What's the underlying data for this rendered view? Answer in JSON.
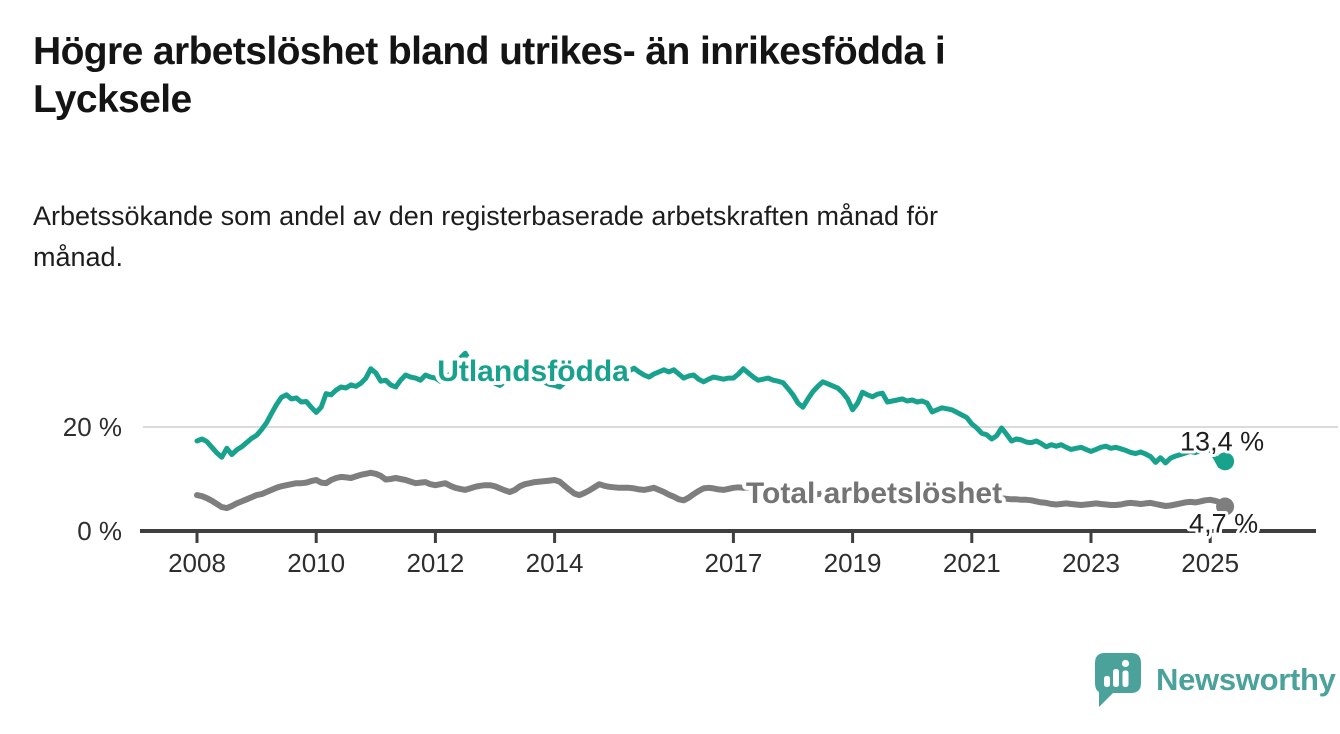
{
  "header": {
    "title_lines": [
      "Högre arbetslöshet bland utrikes- än inrikesfödda i",
      "Lycksele"
    ],
    "subtitle_lines": [
      "Arbetssökande som andel av den registerbaserade arbetskraften månad för",
      "månad."
    ]
  },
  "branding": {
    "logo_text": "Newsworthy",
    "logo_color": "#4BA29B",
    "logo_icon": "speech-bubble-bar-chart-icon"
  },
  "chart_data": {
    "type": "line",
    "unit": "%",
    "x_start": "2008-01",
    "x_end": "2025-04",
    "points_per_year": 12,
    "x_tick_labels": [
      "2008",
      "2010",
      "2012",
      "2014",
      "2017",
      "2019",
      "2021",
      "2023",
      "2025"
    ],
    "x_tick_years": [
      2008,
      2010,
      2012,
      2014,
      2017,
      2019,
      2021,
      2023,
      2025
    ],
    "y_ticks": [
      {
        "label": "20 %",
        "value": 20
      },
      {
        "label": "0 %",
        "value": 0
      }
    ],
    "ylim_visible": [
      0,
      36
    ],
    "grid": "single light horizontal gridline at 20 %, dark baseline at 0 %",
    "legend_position": "inline labels on lines",
    "colors": {
      "utlandsfodda": "#18A28D",
      "total": "#7E7E7E",
      "axis": "#3F3F3F",
      "gridline": "#DBDBDB",
      "end_label_text": "#1F1F1F",
      "tick_text": "#2E2E2E"
    },
    "series": [
      {
        "name": "Utlandsfödda",
        "color": "#18A28D",
        "label_color": "#18A28D",
        "end_label": "13,4 %",
        "end_value": 13.4,
        "label_anchor": {
          "year": 2012.03,
          "pct": 28.85
        },
        "values": [
          17.3,
          17.7,
          17.2,
          16.1,
          15.0,
          14.2,
          15.9,
          14.7,
          15.6,
          16.2,
          17.0,
          17.8,
          18.4,
          19.5,
          20.8,
          22.6,
          24.3,
          25.7,
          26.2,
          25.4,
          25.6,
          24.8,
          24.9,
          23.8,
          22.8,
          23.8,
          26.4,
          26.2,
          27.1,
          27.7,
          27.5,
          28.1,
          27.8,
          28.4,
          29.4,
          31.2,
          30.4,
          28.8,
          29.0,
          28.1,
          27.7,
          29.0,
          30.0,
          29.6,
          29.4,
          29.0,
          30.0,
          29.6,
          29.4,
          28.8,
          29.5,
          30.2,
          31.5,
          33.2,
          34.2,
          32.5,
          31.0,
          30.2,
          29.6,
          29.0,
          28.4,
          28.0,
          28.8,
          29.6,
          30.2,
          29.8,
          30.4,
          30.0,
          29.5,
          29.0,
          28.6,
          28.2,
          28.0,
          27.7,
          28.5,
          29.2,
          29.8,
          30.2,
          29.8,
          29.4,
          29.0,
          29.4,
          29.8,
          30.2,
          30.0,
          29.6,
          30.2,
          30.8,
          31.3,
          30.6,
          30.0,
          29.6,
          30.2,
          30.6,
          31.0,
          30.6,
          31.0,
          30.2,
          29.4,
          29.8,
          30.0,
          29.2,
          28.7,
          29.2,
          29.6,
          29.4,
          29.2,
          29.4,
          29.4,
          30.2,
          31.2,
          30.4,
          29.6,
          29.0,
          29.2,
          29.4,
          29.0,
          28.8,
          28.5,
          27.4,
          26.2,
          24.6,
          23.8,
          25.4,
          26.8,
          27.8,
          28.7,
          28.3,
          27.9,
          27.5,
          26.6,
          25.4,
          23.3,
          24.6,
          26.7,
          26.2,
          25.8,
          26.3,
          26.5,
          24.8,
          25.0,
          25.2,
          25.4,
          25.0,
          25.2,
          24.8,
          25.0,
          24.6,
          22.9,
          23.3,
          23.7,
          23.5,
          23.3,
          22.8,
          22.3,
          21.8,
          20.6,
          19.8,
          18.8,
          18.5,
          17.7,
          18.3,
          19.8,
          18.6,
          17.3,
          17.7,
          17.5,
          17.1,
          17.0,
          17.3,
          16.8,
          16.2,
          16.6,
          16.3,
          16.6,
          16.1,
          15.7,
          15.9,
          16.1,
          15.7,
          15.3,
          15.7,
          16.1,
          16.3,
          15.9,
          16.1,
          15.8,
          15.5,
          15.1,
          14.9,
          15.2,
          14.8,
          14.3,
          13.2,
          14.1,
          13.1,
          14.0,
          14.4,
          14.7,
          15.0,
          15.3,
          15.1,
          15.4,
          15.7,
          15.6,
          14.2,
          12.5,
          13.4
        ]
      },
      {
        "name": "Total arbetslöshet",
        "color": "#7E7E7E",
        "label_color": "#747474",
        "end_label": "4,7 %",
        "end_value": 4.7,
        "label_anchor": {
          "year": 2017.21,
          "pct": 5.4
        },
        "values": [
          6.9,
          6.7,
          6.3,
          5.8,
          5.2,
          4.6,
          4.4,
          4.8,
          5.3,
          5.7,
          6.1,
          6.5,
          6.9,
          7.1,
          7.5,
          7.9,
          8.3,
          8.6,
          8.8,
          9.0,
          9.2,
          9.2,
          9.3,
          9.6,
          9.8,
          9.3,
          9.2,
          9.8,
          10.2,
          10.4,
          10.3,
          10.2,
          10.5,
          10.8,
          11.0,
          11.2,
          11.0,
          10.6,
          9.9,
          10.0,
          10.2,
          10.0,
          9.8,
          9.5,
          9.2,
          9.3,
          9.4,
          9.0,
          8.8,
          9.0,
          9.2,
          8.7,
          8.3,
          8.1,
          7.9,
          8.2,
          8.5,
          8.7,
          8.8,
          8.8,
          8.6,
          8.2,
          7.8,
          7.5,
          7.9,
          8.6,
          9.0,
          9.2,
          9.4,
          9.5,
          9.6,
          9.7,
          9.8,
          9.5,
          8.7,
          7.9,
          7.2,
          6.9,
          7.3,
          7.8,
          8.4,
          9.0,
          8.7,
          8.5,
          8.4,
          8.3,
          8.3,
          8.3,
          8.2,
          8.0,
          7.9,
          8.1,
          8.3,
          7.9,
          7.5,
          7.0,
          6.6,
          6.1,
          5.9,
          6.4,
          7.1,
          7.7,
          8.2,
          8.3,
          8.2,
          8.0,
          7.9,
          8.1,
          8.3,
          8.4,
          8.3,
          8.4,
          8.2,
          8.0,
          7.9,
          7.8,
          7.7,
          7.6,
          7.5,
          7.4,
          7.3,
          7.2,
          7.1,
          7.0,
          7.0,
          7.1,
          7.2,
          7.1,
          7.0,
          6.9,
          6.8,
          6.8,
          6.9,
          6.8,
          6.8,
          6.7,
          6.7,
          6.8,
          6.9,
          6.8,
          6.8,
          6.9,
          7.0,
          7.1,
          7.2,
          7.3,
          7.6,
          8.0,
          8.1,
          8.0,
          7.9,
          7.7,
          7.5,
          7.3,
          7.1,
          7.0,
          6.9,
          6.8,
          6.7,
          6.5,
          6.4,
          6.3,
          6.3,
          6.2,
          6.1,
          6.1,
          6.0,
          6.0,
          5.9,
          5.7,
          5.5,
          5.4,
          5.2,
          5.1,
          5.2,
          5.3,
          5.2,
          5.1,
          5.0,
          5.1,
          5.2,
          5.3,
          5.2,
          5.1,
          5.0,
          5.0,
          5.1,
          5.3,
          5.4,
          5.3,
          5.2,
          5.3,
          5.4,
          5.2,
          5.0,
          4.8,
          4.9,
          5.1,
          5.3,
          5.5,
          5.6,
          5.5,
          5.7,
          5.9,
          6.0,
          5.8,
          5.5,
          4.7
        ]
      }
    ]
  }
}
